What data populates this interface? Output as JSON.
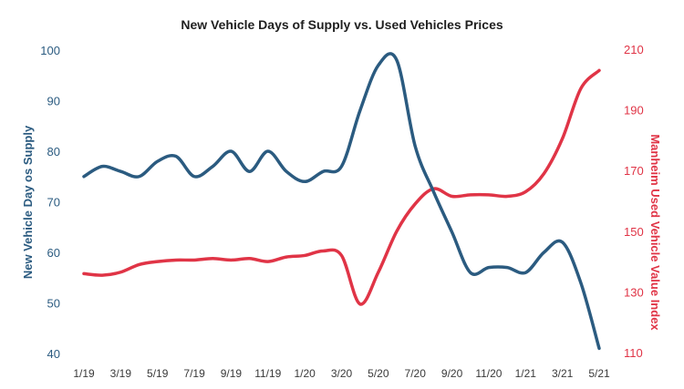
{
  "chart_data": {
    "type": "line",
    "title": "New Vehicle Days of Supply vs. Used Vehicles Prices",
    "ylabel_left": "New Vehicle Day os Supply",
    "ylabel_right": "Manheim Used Vehicle Value Index",
    "xlabel": "",
    "ylim_left": [
      40,
      100
    ],
    "ylim_right": [
      110,
      210
    ],
    "yticks_left": [
      "40",
      "50",
      "60",
      "70",
      "80",
      "90",
      "100"
    ],
    "yticks_right": [
      "110",
      "130",
      "150",
      "170",
      "190",
      "210"
    ],
    "x_ticks": [
      "1/19",
      "3/19",
      "5/19",
      "7/19",
      "9/19",
      "11/19",
      "1/20",
      "3/20",
      "5/20",
      "7/20",
      "9/20",
      "11/20",
      "1/21",
      "3/21",
      "5/21"
    ],
    "x": [
      "1/19",
      "2/19",
      "3/19",
      "4/19",
      "5/19",
      "6/19",
      "7/19",
      "8/19",
      "9/19",
      "10/19",
      "11/19",
      "12/19",
      "1/20",
      "2/20",
      "3/20",
      "4/20",
      "5/20",
      "6/20",
      "7/20",
      "8/20",
      "9/20",
      "10/20",
      "11/20",
      "12/20",
      "1/21",
      "2/21",
      "3/21",
      "4/21",
      "5/21"
    ],
    "grid": false,
    "legend": "none",
    "colors": {
      "supply": "#2b5b80",
      "index": "#e03446"
    },
    "series": [
      {
        "axis": "left",
        "values": [
          75,
          77,
          76,
          75,
          78,
          79,
          75,
          77,
          80,
          76,
          80,
          76,
          74,
          76,
          77,
          88,
          97,
          98,
          81,
          72,
          64,
          56,
          57,
          57,
          56,
          60,
          62,
          54,
          41
        ]
      },
      {
        "axis": "right",
        "values": [
          136,
          135.5,
          136.5,
          139,
          140,
          140.5,
          140.5,
          141,
          140.5,
          141,
          140,
          141.5,
          142,
          143.5,
          142,
          126,
          136.5,
          150,
          159,
          164,
          161.5,
          162,
          162,
          161.5,
          163,
          169,
          180.5,
          197,
          203
        ]
      }
    ]
  }
}
